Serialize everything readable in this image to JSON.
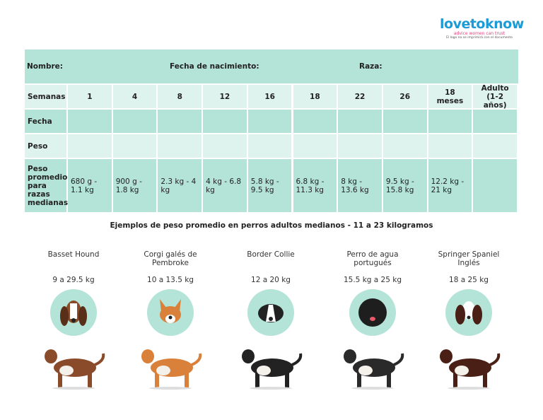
{
  "header": {
    "brand": "lovetoknow",
    "tagline": "advice women can trust",
    "note": "El logo no se imprimirá con el documento"
  },
  "table": {
    "info": [
      "Nombre:",
      "Fecha de nacimiento:",
      "Raza:"
    ],
    "columns": [
      "Semanas",
      "1",
      "4",
      "8",
      "12",
      "16",
      "18",
      "22",
      "26",
      "18 meses",
      "Adulto (1-2 años)"
    ],
    "rows": [
      [
        "Fecha"
      ],
      [
        "Peso"
      ],
      [
        "Peso promedio para razas medianas",
        "680 g - 1.1 kg",
        "900 g - 1.8 kg",
        "2.3 kg - 4 kg",
        "4 kg - 6.8 kg",
        "5.8 kg - 9.5 kg",
        "6.8 kg - 11.3 kg",
        "8 kg - 13.6 kg",
        "9.5 kg - 15.8 kg",
        "12.2 kg - 21 kg"
      ]
    ]
  },
  "caption": "Ejemplos de peso promedio en perros adultos medianos - 11 a 23 kilogramos",
  "dogs": [
    {
      "name": "Basset Hound",
      "weight": "9 a 29.5 kg"
    },
    {
      "name": "Corgi galés de Pembroke",
      "weight": "10 a 13.5 kg"
    },
    {
      "name": "Border Collie",
      "weight": "12 a 20 kg"
    },
    {
      "name": "Perro de agua portugués",
      "weight": "15.5 kg a 25 kg"
    },
    {
      "name": "Springer Spaniel Inglés",
      "weight": "18 a 25 kg"
    }
  ]
}
